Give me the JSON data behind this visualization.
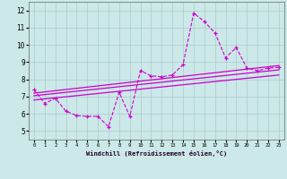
{
  "xlabel": "Windchill (Refroidissement éolien,°C)",
  "background_color": "#cce8e8",
  "line_color": "#cc00cc",
  "grid_color": "#aacccc",
  "xlim": [
    -0.5,
    23.5
  ],
  "ylim": [
    4.5,
    12.5
  ],
  "xticks": [
    0,
    1,
    2,
    3,
    4,
    5,
    6,
    7,
    8,
    9,
    10,
    11,
    12,
    13,
    14,
    15,
    16,
    17,
    18,
    19,
    20,
    21,
    22,
    23
  ],
  "yticks": [
    5,
    6,
    7,
    8,
    9,
    10,
    11,
    12
  ],
  "main_x": [
    0,
    1,
    2,
    3,
    4,
    5,
    6,
    7,
    8,
    9,
    10,
    11,
    12,
    13,
    14,
    15,
    16,
    17,
    18,
    19,
    20,
    21,
    22,
    23
  ],
  "main_y": [
    7.4,
    6.6,
    6.9,
    6.15,
    5.9,
    5.85,
    5.85,
    5.25,
    7.25,
    5.85,
    8.5,
    8.2,
    8.15,
    8.25,
    8.85,
    11.85,
    11.35,
    10.7,
    9.25,
    9.85,
    8.65,
    8.5,
    8.65,
    8.7
  ],
  "trend1_x": [
    0,
    23
  ],
  "trend1_y": [
    7.05,
    8.55
  ],
  "trend2_x": [
    0,
    23
  ],
  "trend2_y": [
    7.2,
    8.8
  ],
  "trend3_x": [
    0,
    23
  ],
  "trend3_y": [
    6.8,
    8.25
  ]
}
